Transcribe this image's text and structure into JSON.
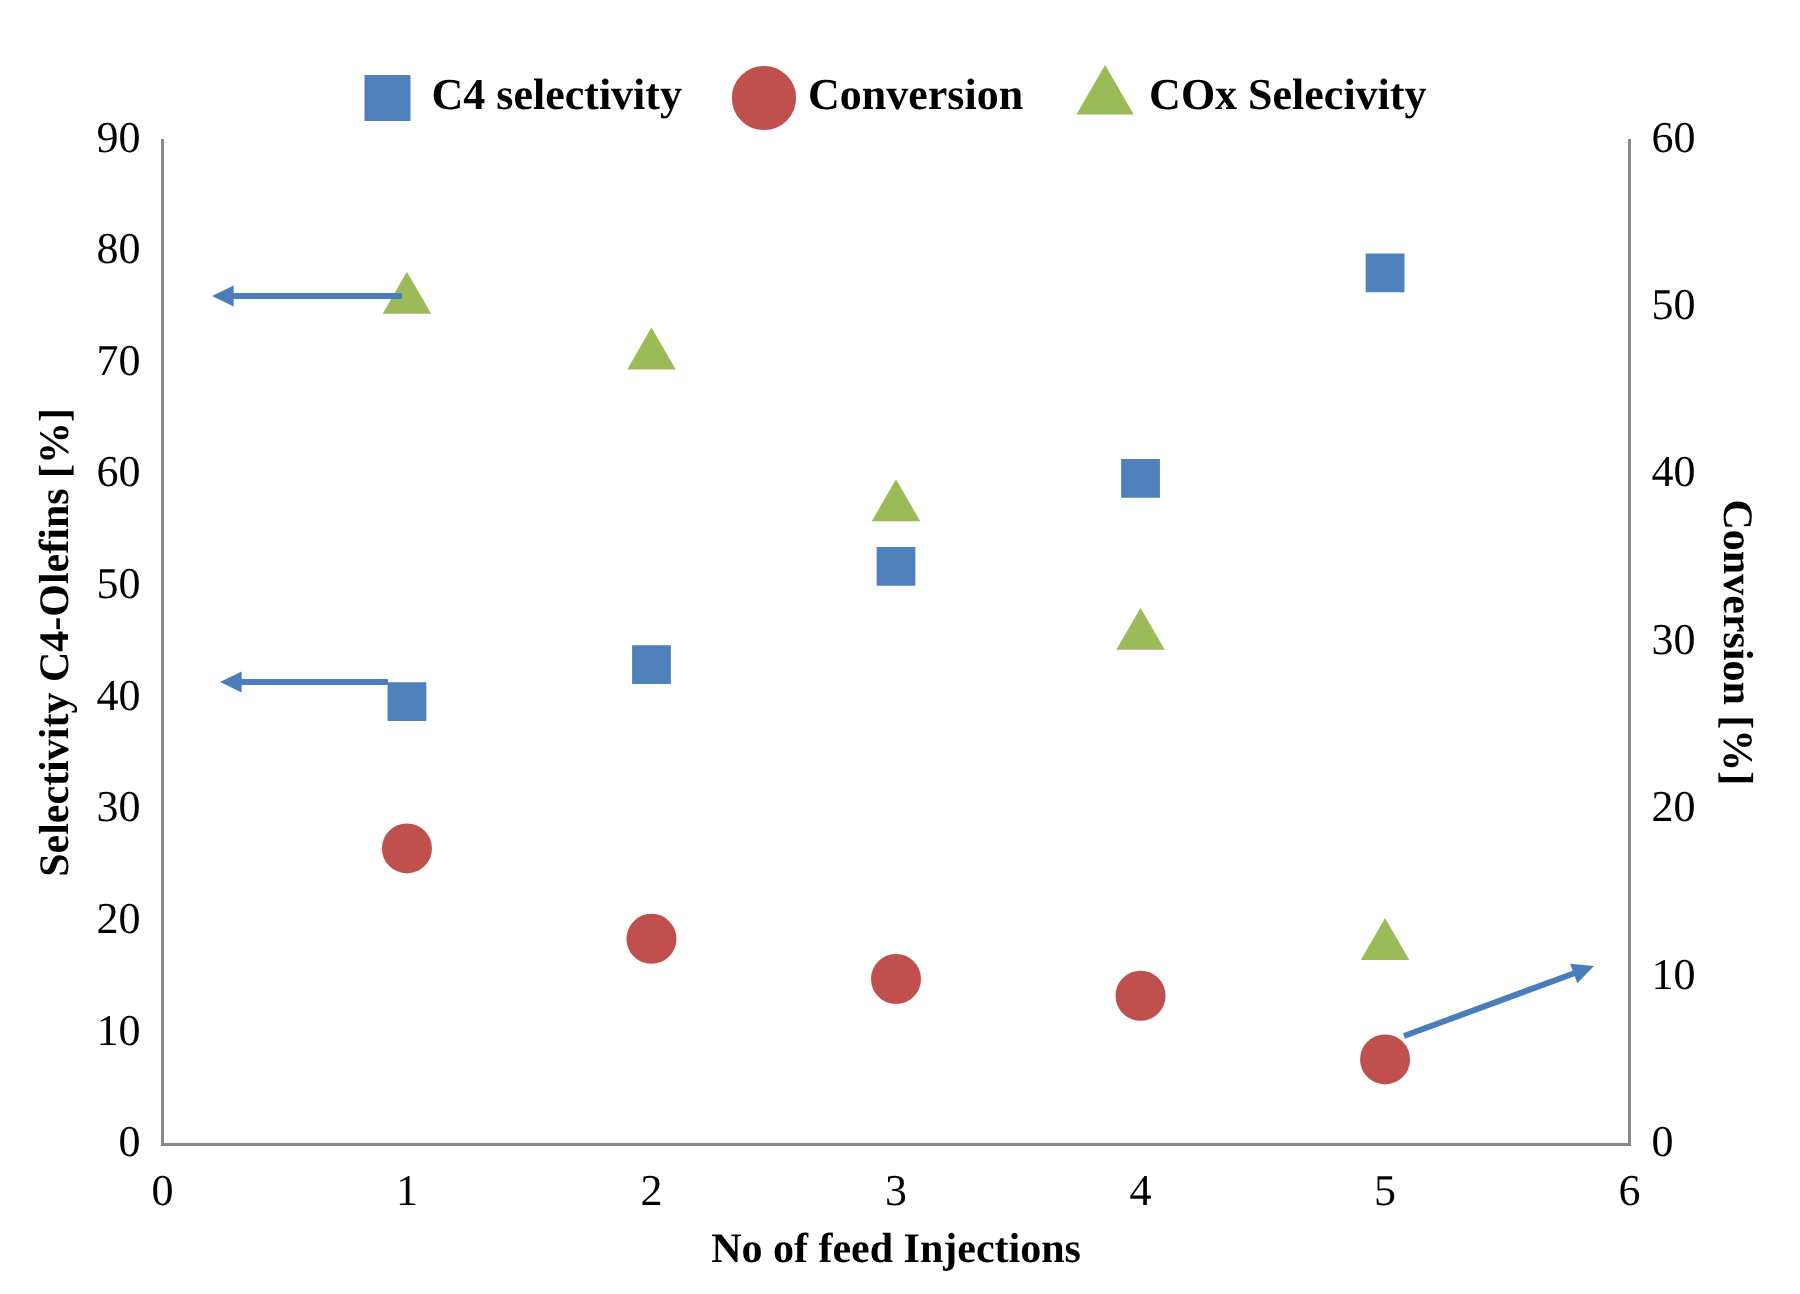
{
  "chart_data": {
    "type": "scatter",
    "xlabel": "No of feed Injections",
    "ylabel": "Selectivity C4-Olefins [%]",
    "y2label": "Conversion [%]",
    "x": [
      1,
      2,
      3,
      4,
      5
    ],
    "series": [
      {
        "name": "C4 selectivity",
        "color": "#4f81bd",
        "marker": "square",
        "values": [
          39.7,
          43.0,
          51.8,
          59.7,
          78.1
        ]
      },
      {
        "name": "Conversion",
        "color": "#c0504d",
        "marker": "circle",
        "axis": "y2",
        "values": [
          17.7,
          12.3,
          9.9,
          8.9,
          5.1
        ]
      },
      {
        "name": "COx Selecivity",
        "color": "#9bbb59",
        "marker": "triangle",
        "values": [
          75.7,
          70.7,
          57.1,
          45.6,
          17.8
        ]
      }
    ],
    "xlim": [
      0,
      6
    ],
    "xticks": [
      0,
      1,
      2,
      3,
      4,
      5,
      6
    ],
    "ylim": [
      0,
      90
    ],
    "yticks": [
      0,
      10,
      20,
      30,
      40,
      50,
      60,
      70,
      80,
      90
    ],
    "y2lim": [
      0,
      60
    ],
    "y2ticks": [
      0,
      10,
      20,
      30,
      40,
      50,
      60
    ],
    "grid": false,
    "legend": "top"
  }
}
